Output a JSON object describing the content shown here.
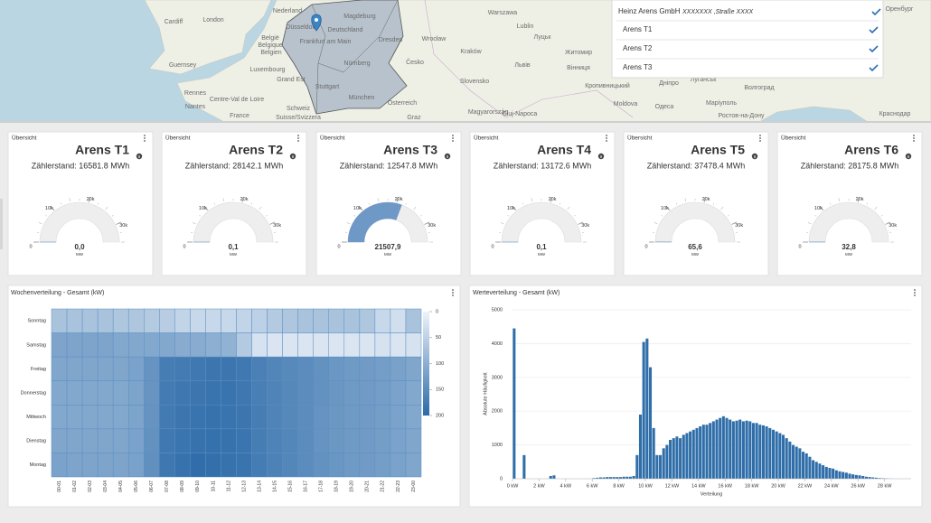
{
  "map": {
    "labels": [
      "Cardiff",
      "London",
      "Nederland",
      "Düsseldorf",
      "Deutschland",
      "Magdeburg",
      "Frankfurt am Main",
      "Dresden",
      "Nürnberg",
      "Stuttgart",
      "München",
      "België",
      "Belgique",
      "Belgien",
      "Luxembourg",
      "Grand Est",
      "Guernsey",
      "Rennes",
      "Nantes",
      "France",
      "Centre-Val de Loire",
      "Schweiz",
      "Suisse/Svizzera",
      "Österreich",
      "Graz",
      "Česko",
      "Wrocław",
      "Kraków",
      "Slovensko",
      "Magyarország",
      "Warszawa",
      "Lublin",
      "Луцьк",
      "Житомир",
      "Київ",
      "Львів",
      "Вінниця",
      "Кропивницький",
      "Дніпро",
      "Луганськ",
      "Волгоград",
      "Moldova",
      "Cluj-Napoca",
      "Одеса",
      "Маріуполь",
      "Ростов-на-Дону",
      "Краснодар",
      "Оренбург"
    ]
  },
  "selector": {
    "company": "Heinz Arens GmbH",
    "address": "XXXXXXX ,Straße XXXX",
    "items": [
      "Arens T1",
      "Arens T2",
      "Arens T3"
    ]
  },
  "gauge": {
    "lim": [
      0,
      35000
    ],
    "ticks": [
      0,
      {
        "value": 10000,
        "label": "10k"
      },
      {
        "value": 20000,
        "label": "20k"
      },
      {
        "value": 30000,
        "label": "30k"
      }
    ],
    "color": "#6e98c5",
    "unit": "MW"
  },
  "cards": [
    {
      "header": "Übersicht",
      "title": "Arens T1",
      "meter": "Zählerstand: 16581.8 MWh",
      "value": 0.0,
      "value_label": "0,0"
    },
    {
      "header": "Übersicht",
      "title": "Arens T2",
      "meter": "Zählerstand: 28142.1 MWh",
      "value": 0.1,
      "value_label": "0,1"
    },
    {
      "header": "Übersicht",
      "title": "Arens T3",
      "meter": "Zählerstand: 12547.8 MWh",
      "value": 21507.9,
      "value_label": "21507,9"
    },
    {
      "header": "Übersicht",
      "title": "Arens T4",
      "meter": "Zählerstand: 13172.6 MWh",
      "value": 0.1,
      "value_label": "0,1"
    },
    {
      "header": "Übersicht",
      "title": "Arens T5",
      "meter": "Zählerstand: 37478.4 MWh",
      "value": 65.6,
      "value_label": "65,6"
    },
    {
      "header": "Übersicht",
      "title": "Arens T6",
      "meter": "Zählerstand: 28175.8 MWh",
      "value": 32.8,
      "value_label": "32,8"
    }
  ],
  "chart_data": [
    {
      "type": "heatmap",
      "title": "Wochenverteilung - Gesamt (kW)",
      "categories": [
        "00-01",
        "01-02",
        "02-03",
        "03-04",
        "04-05",
        "05-06",
        "06-07",
        "07-08",
        "08-09",
        "09-10",
        "10-11",
        "11-12",
        "12-13",
        "13-14",
        "14-15",
        "15-16",
        "16-17",
        "17-18",
        "18-19",
        "19-20",
        "20-21",
        "21-22",
        "22-23",
        "23-00"
      ],
      "rows": [
        "Sonntag",
        "Samstag",
        "Freitag",
        "Donnerstag",
        "Mittwoch",
        "Dienstag",
        "Montag"
      ],
      "values": [
        [
          70,
          70,
          70,
          70,
          65,
          65,
          60,
          55,
          45,
          40,
          40,
          40,
          45,
          50,
          60,
          65,
          70,
          70,
          70,
          70,
          65,
          40,
          30,
          70
        ],
        [
          115,
          115,
          115,
          115,
          110,
          110,
          110,
          110,
          105,
          105,
          100,
          95,
          60,
          25,
          20,
          20,
          20,
          20,
          20,
          20,
          20,
          25,
          20,
          25
        ],
        [
          112,
          112,
          112,
          112,
          112,
          118,
          140,
          172,
          175,
          178,
          182,
          182,
          178,
          168,
          160,
          155,
          150,
          142,
          135,
          130,
          128,
          125,
          120,
          112
        ],
        [
          110,
          110,
          110,
          110,
          110,
          116,
          138,
          175,
          180,
          182,
          185,
          186,
          180,
          170,
          162,
          156,
          150,
          142,
          136,
          130,
          128,
          125,
          118,
          110
        ],
        [
          110,
          110,
          110,
          110,
          110,
          116,
          140,
          176,
          182,
          185,
          188,
          186,
          182,
          172,
          162,
          156,
          150,
          140,
          134,
          130,
          128,
          124,
          118,
          110
        ],
        [
          112,
          112,
          112,
          112,
          112,
          118,
          142,
          178,
          184,
          188,
          190,
          188,
          184,
          172,
          164,
          158,
          150,
          140,
          134,
          130,
          128,
          124,
          118,
          112
        ],
        [
          118,
          115,
          115,
          115,
          115,
          120,
          145,
          180,
          188,
          195,
          192,
          188,
          185,
          174,
          165,
          158,
          150,
          142,
          136,
          130,
          128,
          124,
          118,
          112
        ]
      ],
      "clim": [
        0,
        200
      ],
      "cticks": [
        0,
        50,
        100,
        150,
        200
      ],
      "colors": [
        "#eef3fa",
        "#2b6aa8"
      ]
    },
    {
      "type": "histogram",
      "title": "Werteverteilung - Gesamt (kW)",
      "ylabel": "Absolute Häufigkeit",
      "xlabel": "Verteilung",
      "color": "#2f6ea9",
      "grid": true,
      "bins": [
        0,
        0.25,
        0.5,
        0.75,
        1,
        1.25,
        1.5,
        1.75,
        2,
        2.25,
        2.5,
        2.75,
        3,
        3.25,
        3.5,
        3.75,
        4,
        4.25,
        4.5,
        4.75,
        5,
        5.25,
        5.5,
        5.75,
        6,
        6.25,
        6.5,
        6.75,
        7,
        7.25,
        7.5,
        7.75,
        8,
        8.25,
        8.5,
        8.75,
        9,
        9.25,
        9.5,
        9.75,
        10,
        10.25,
        10.5,
        10.75,
        11,
        11.25,
        11.5,
        11.75,
        12,
        12.25,
        12.5,
        12.75,
        13,
        13.25,
        13.5,
        13.75,
        14,
        14.25,
        14.5,
        14.75,
        15,
        15.25,
        15.5,
        15.75,
        16,
        16.25,
        16.5,
        16.75,
        17,
        17.25,
        17.5,
        17.75,
        18,
        18.25,
        18.5,
        18.75,
        19,
        19.25,
        19.5,
        19.75,
        20,
        20.25,
        20.5,
        20.75,
        21,
        21.25,
        21.5,
        21.75,
        22,
        22.25,
        22.5,
        22.75,
        23,
        23.25,
        23.5,
        23.75,
        24,
        24.25,
        24.5,
        24.75,
        25,
        25.25,
        25.5,
        25.75,
        26,
        26.25,
        26.5,
        26.75,
        27,
        27.25,
        27.5,
        27.75,
        28,
        28.25,
        28.5,
        28.75,
        29,
        29.25,
        29.5,
        29.75,
        30
      ],
      "counts": [
        4450,
        0,
        0,
        700,
        0,
        0,
        0,
        0,
        0,
        0,
        0,
        80,
        100,
        0,
        0,
        0,
        0,
        0,
        0,
        0,
        0,
        0,
        0,
        0,
        20,
        30,
        40,
        40,
        50,
        50,
        50,
        50,
        50,
        60,
        60,
        60,
        80,
        700,
        1900,
        4050,
        4150,
        3300,
        1500,
        700,
        700,
        900,
        1000,
        1150,
        1200,
        1250,
        1200,
        1300,
        1350,
        1400,
        1450,
        1500,
        1550,
        1600,
        1600,
        1650,
        1700,
        1750,
        1800,
        1850,
        1800,
        1750,
        1700,
        1720,
        1750,
        1700,
        1720,
        1700,
        1650,
        1650,
        1600,
        1580,
        1550,
        1500,
        1450,
        1400,
        1350,
        1300,
        1200,
        1100,
        1000,
        950,
        900,
        800,
        750,
        650,
        550,
        500,
        450,
        400,
        350,
        320,
        300,
        250,
        220,
        200,
        180,
        150,
        130,
        110,
        100,
        80,
        60,
        50,
        40,
        30,
        20,
        15,
        10,
        5,
        0,
        0,
        0,
        0,
        0,
        0
      ],
      "xlim": [
        0,
        30
      ],
      "xticks": [
        {
          "value": 0,
          "label": "0 kW"
        },
        {
          "value": 2,
          "label": "2 kW"
        },
        {
          "value": 4,
          "label": "4 kW"
        },
        {
          "value": 6,
          "label": "6 kW"
        },
        {
          "value": 8,
          "label": "8 kW"
        },
        {
          "value": 10,
          "label": "10 kW"
        },
        {
          "value": 12,
          "label": "12 kW"
        },
        {
          "value": 14,
          "label": "14 kW"
        },
        {
          "value": 16,
          "label": "16 kW"
        },
        {
          "value": 18,
          "label": "18 kW"
        },
        {
          "value": 20,
          "label": "20 kW"
        },
        {
          "value": 22,
          "label": "22 kW"
        },
        {
          "value": 24,
          "label": "24 kW"
        },
        {
          "value": 26,
          "label": "26 kW"
        },
        {
          "value": 28,
          "label": "28 kW"
        }
      ],
      "ylim": [
        0,
        5000
      ],
      "yticks": [
        0,
        1000,
        2000,
        3000,
        4000,
        5000
      ]
    }
  ]
}
